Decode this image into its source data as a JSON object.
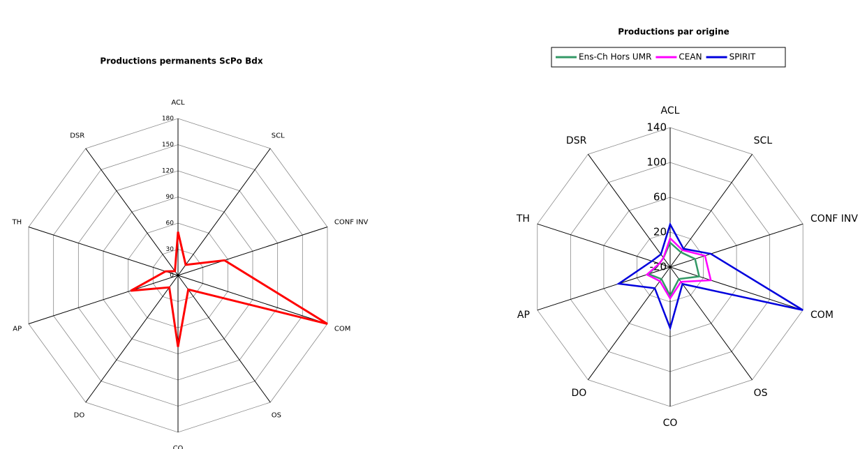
{
  "chart_data": [
    {
      "type": "radar",
      "title": "Productions permanents ScPo Bdx",
      "categories": [
        "ACL",
        "SCL",
        "CONF INV",
        "COM",
        "OS",
        "CO",
        "DO",
        "AP",
        "TH",
        "DSR"
      ],
      "values": [
        50,
        15,
        56,
        180,
        20,
        82,
        17,
        57,
        15,
        6
      ],
      "color": "#ff0000",
      "ylim": [
        0,
        180
      ],
      "yticks": [
        0,
        30,
        60,
        90,
        120,
        150,
        180
      ],
      "grid": true
    },
    {
      "type": "radar",
      "title": "Productions par origine",
      "categories": [
        "ACL",
        "SCL",
        "CONF INV",
        "COM",
        "OS",
        "CO",
        "DO",
        "AP",
        "TH",
        "DSR"
      ],
      "series": [
        {
          "name": "Ens-Ch Hors UMR",
          "color": "#339966",
          "values": [
            8,
            1,
            10,
            15,
            -3,
            13,
            -3,
            6,
            -7,
            -7
          ]
        },
        {
          "name": "CEAN",
          "color": "#ff00ff",
          "values": [
            13,
            4,
            22,
            29,
            1,
            16,
            0,
            8,
            -7,
            -7
          ]
        },
        {
          "name": "SPIRIT",
          "color": "#0000dd",
          "values": [
            29,
            6,
            29,
            140,
            4,
            50,
            10,
            42,
            2,
            -2
          ]
        }
      ],
      "ylim": [
        -20,
        140
      ],
      "yticks": [
        -20,
        20,
        60,
        100,
        140
      ],
      "grid": true,
      "legend": "top"
    }
  ]
}
